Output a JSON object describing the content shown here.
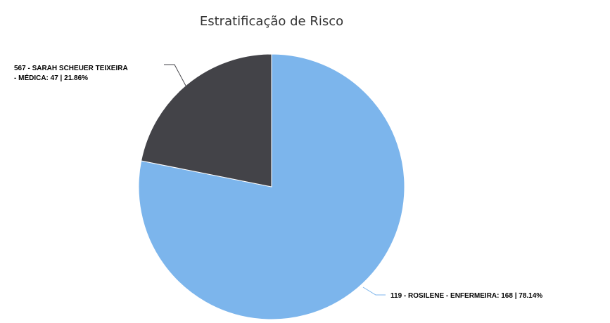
{
  "chart_data": {
    "type": "pie",
    "title": "Estratificação de Risco",
    "slices": [
      {
        "label_lines": [
          "119 - ROSILENE - ENFERMEIRA: 168 | 78.14%"
        ],
        "value": 168,
        "percent": 78.14,
        "color": "#7cb5ec"
      },
      {
        "label_lines": [
          "567 - SARAH SCHEUER TEIXEIRA",
          "- MÉDICA: 47 | 21.86%"
        ],
        "value": 47,
        "percent": 21.86,
        "color": "#434348"
      }
    ]
  }
}
